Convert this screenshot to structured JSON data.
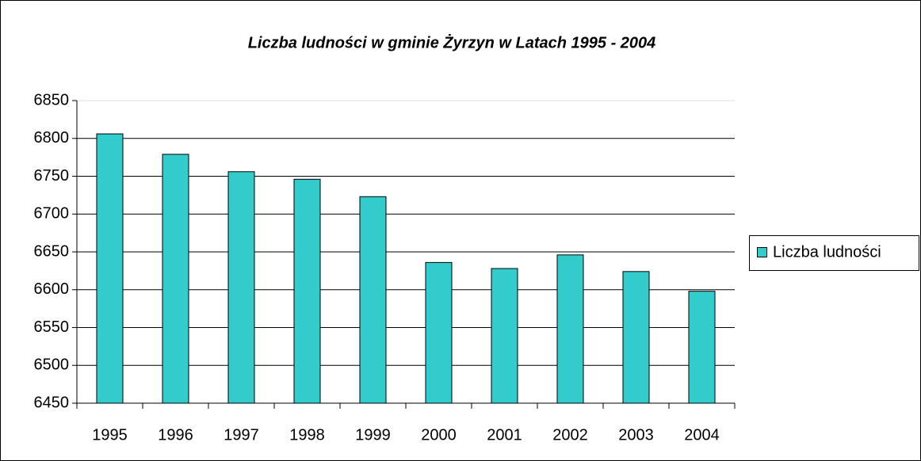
{
  "chart_data": {
    "type": "bar",
    "title": "Liczba ludności w gminie Żyrzyn w Latach 1995 - 2004",
    "categories": [
      "1995",
      "1996",
      "1997",
      "1998",
      "1999",
      "2000",
      "2001",
      "2002",
      "2003",
      "2004"
    ],
    "series": [
      {
        "name": "Liczba ludności",
        "color": "#33cccc",
        "values": [
          6806,
          6779,
          6756,
          6746,
          6723,
          6636,
          6628,
          6646,
          6624,
          6598
        ]
      }
    ],
    "ylim": [
      6450,
      6850
    ],
    "yticks": [
      6450,
      6500,
      6550,
      6600,
      6650,
      6700,
      6750,
      6800,
      6850
    ],
    "grid": true,
    "legend": "right"
  }
}
